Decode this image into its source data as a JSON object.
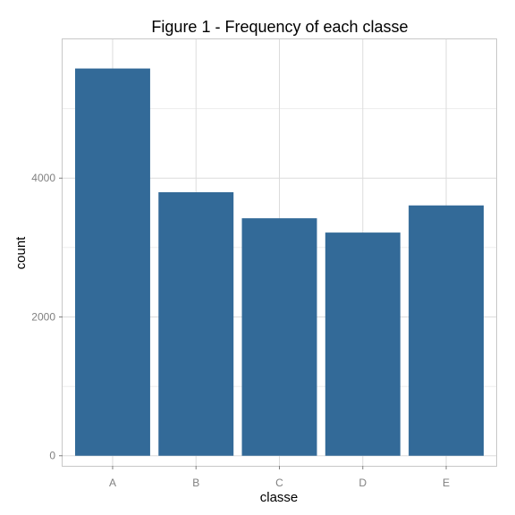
{
  "chart_data": {
    "type": "bar",
    "title": "Figure 1 - Frequency of each classe",
    "xlabel": "classe",
    "ylabel": "count",
    "categories": [
      "A",
      "B",
      "C",
      "D",
      "E"
    ],
    "values": [
      5580,
      3797,
      3422,
      3216,
      3607
    ],
    "ylim": [
      -145,
      6000
    ],
    "yticks": [
      0,
      2000,
      4000
    ],
    "ytick_labels": [
      "0",
      "2000",
      "4000"
    ],
    "grid": true,
    "legend": "none",
    "colors": {
      "bar": "#336a98",
      "grid": "#dcdcdc",
      "border": "#c8c8c8",
      "tick_text": "#808080"
    }
  }
}
